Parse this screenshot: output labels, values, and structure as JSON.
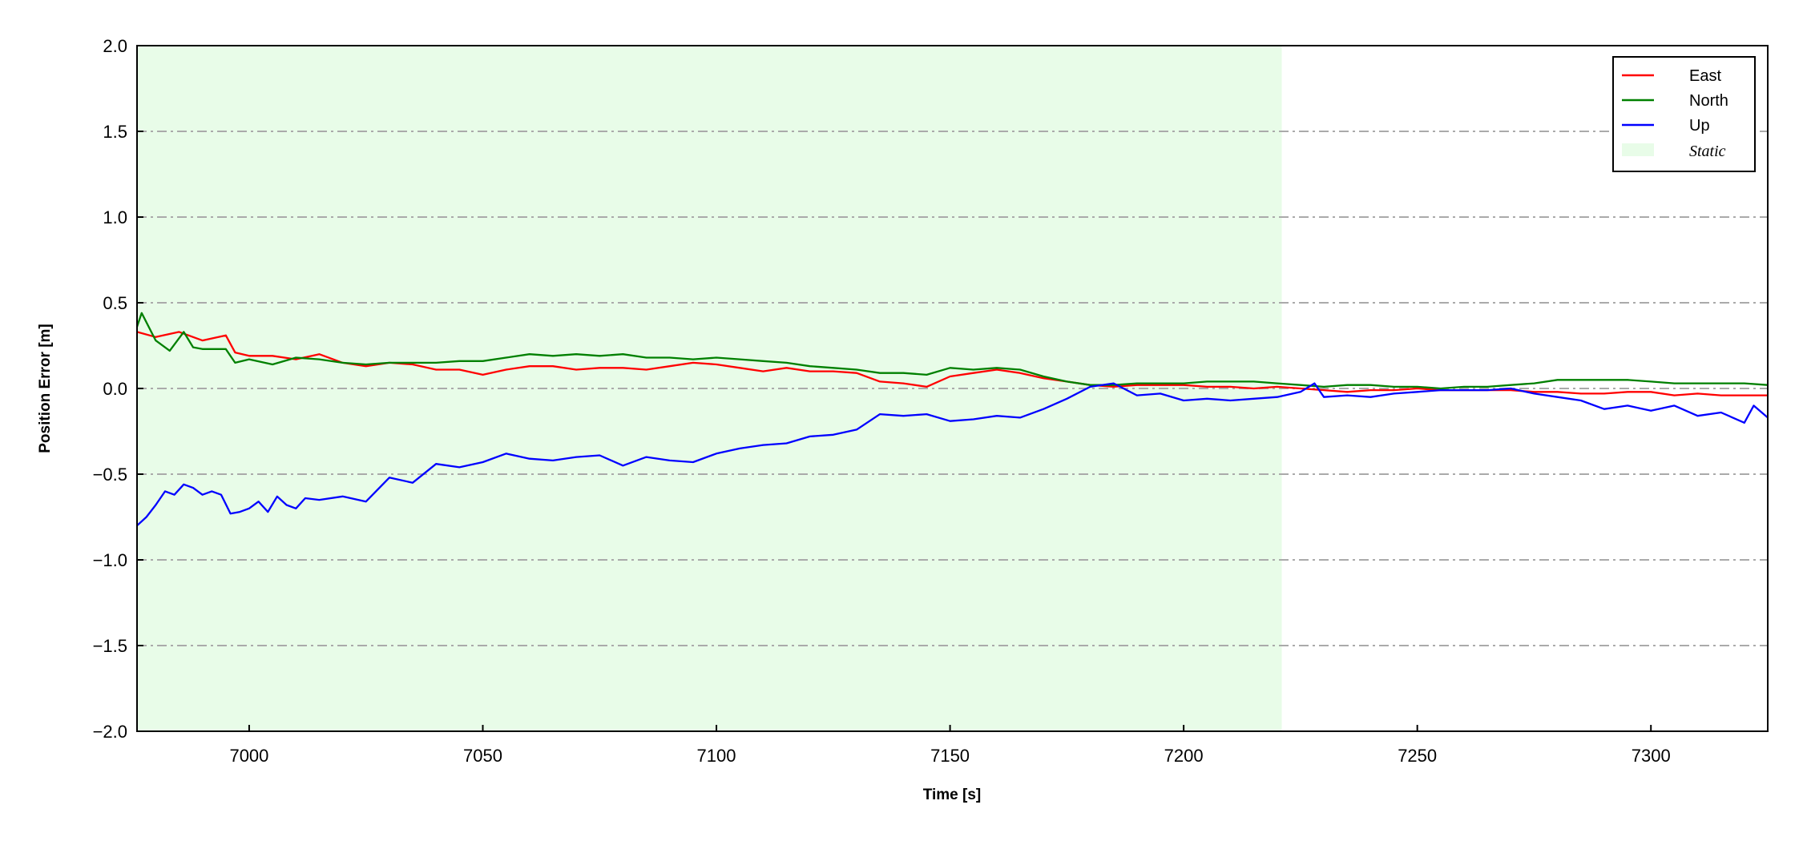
{
  "chart_data": {
    "type": "line",
    "xlabel": "Time [s]",
    "ylabel": "Position Error [m]",
    "xlim": [
      6976,
      7325
    ],
    "ylim": [
      -2.0,
      2.0
    ],
    "xticks": [
      7000,
      7050,
      7100,
      7150,
      7200,
      7250,
      7300
    ],
    "yticks": [
      -2.0,
      -1.5,
      -1.0,
      -0.5,
      0.0,
      0.5,
      1.0,
      1.5,
      2.0
    ],
    "ytick_labels": [
      "−2.0",
      "−1.5",
      "−1.0",
      "−0.5",
      "0.0",
      "0.5",
      "1.0",
      "1.5",
      "2.0"
    ],
    "grid": "horizontal dash-dot",
    "grid_color": "#aaaaaa",
    "legend_placement": "top-right",
    "static_region": {
      "label": "Static",
      "x_start": 6976,
      "x_end": 7221,
      "color": "#e8fce8"
    },
    "series": [
      {
        "name": "East",
        "color": "#ff0000",
        "x": [
          6976,
          6980,
          6985,
          6990,
          6995,
          6997,
          7000,
          7005,
          7010,
          7015,
          7020,
          7025,
          7030,
          7035,
          7040,
          7045,
          7050,
          7055,
          7060,
          7065,
          7070,
          7075,
          7080,
          7085,
          7090,
          7095,
          7100,
          7105,
          7110,
          7115,
          7120,
          7125,
          7130,
          7135,
          7140,
          7145,
          7150,
          7155,
          7160,
          7165,
          7170,
          7175,
          7180,
          7185,
          7190,
          7195,
          7200,
          7205,
          7210,
          7215,
          7220,
          7225,
          7230,
          7235,
          7240,
          7245,
          7250,
          7255,
          7260,
          7265,
          7270,
          7275,
          7280,
          7285,
          7290,
          7295,
          7300,
          7305,
          7310,
          7315,
          7320,
          7325
        ],
        "y": [
          0.33,
          0.3,
          0.33,
          0.28,
          0.31,
          0.21,
          0.19,
          0.19,
          0.17,
          0.2,
          0.15,
          0.13,
          0.15,
          0.14,
          0.11,
          0.11,
          0.08,
          0.11,
          0.13,
          0.13,
          0.11,
          0.12,
          0.12,
          0.11,
          0.13,
          0.15,
          0.14,
          0.12,
          0.1,
          0.12,
          0.1,
          0.1,
          0.09,
          0.04,
          0.03,
          0.01,
          0.07,
          0.09,
          0.11,
          0.09,
          0.06,
          0.04,
          0.02,
          0.01,
          0.02,
          0.02,
          0.02,
          0.01,
          0.01,
          0.0,
          0.01,
          0.0,
          -0.01,
          -0.02,
          -0.01,
          -0.01,
          0.0,
          -0.01,
          -0.01,
          -0.01,
          -0.01,
          -0.02,
          -0.02,
          -0.03,
          -0.03,
          -0.02,
          -0.02,
          -0.04,
          -0.03,
          -0.04,
          -0.04,
          -0.04
        ]
      },
      {
        "name": "North",
        "color": "#008000",
        "x": [
          6976,
          6977,
          6980,
          6983,
          6986,
          6988,
          6990,
          6995,
          6997,
          7000,
          7005,
          7010,
          7015,
          7020,
          7025,
          7030,
          7035,
          7040,
          7045,
          7050,
          7055,
          7060,
          7065,
          7070,
          7075,
          7080,
          7085,
          7090,
          7095,
          7100,
          7105,
          7110,
          7115,
          7120,
          7125,
          7130,
          7135,
          7140,
          7145,
          7150,
          7155,
          7160,
          7165,
          7170,
          7175,
          7180,
          7185,
          7190,
          7195,
          7200,
          7205,
          7210,
          7215,
          7220,
          7225,
          7230,
          7235,
          7240,
          7245,
          7250,
          7255,
          7260,
          7265,
          7270,
          7275,
          7280,
          7285,
          7290,
          7295,
          7300,
          7305,
          7310,
          7315,
          7320,
          7325
        ],
        "y": [
          0.36,
          0.44,
          0.28,
          0.22,
          0.33,
          0.24,
          0.23,
          0.23,
          0.15,
          0.17,
          0.14,
          0.18,
          0.17,
          0.15,
          0.14,
          0.15,
          0.15,
          0.15,
          0.16,
          0.16,
          0.18,
          0.2,
          0.19,
          0.2,
          0.19,
          0.2,
          0.18,
          0.18,
          0.17,
          0.18,
          0.17,
          0.16,
          0.15,
          0.13,
          0.12,
          0.11,
          0.09,
          0.09,
          0.08,
          0.12,
          0.11,
          0.12,
          0.11,
          0.07,
          0.04,
          0.02,
          0.02,
          0.03,
          0.03,
          0.03,
          0.04,
          0.04,
          0.04,
          0.03,
          0.02,
          0.01,
          0.02,
          0.02,
          0.01,
          0.01,
          0.0,
          0.01,
          0.01,
          0.02,
          0.03,
          0.05,
          0.05,
          0.05,
          0.05,
          0.04,
          0.03,
          0.03,
          0.03,
          0.03,
          0.02
        ]
      },
      {
        "name": "Up",
        "color": "#0000ff",
        "x": [
          6976,
          6978,
          6980,
          6982,
          6984,
          6986,
          6988,
          6990,
          6992,
          6994,
          6996,
          6998,
          7000,
          7002,
          7004,
          7006,
          7008,
          7010,
          7012,
          7015,
          7020,
          7025,
          7030,
          7035,
          7040,
          7045,
          7050,
          7055,
          7060,
          7065,
          7070,
          7075,
          7080,
          7085,
          7090,
          7095,
          7100,
          7105,
          7110,
          7115,
          7120,
          7125,
          7130,
          7135,
          7140,
          7145,
          7150,
          7155,
          7160,
          7165,
          7170,
          7175,
          7180,
          7185,
          7190,
          7195,
          7200,
          7205,
          7210,
          7215,
          7220,
          7225,
          7228,
          7230,
          7235,
          7240,
          7245,
          7250,
          7255,
          7260,
          7265,
          7270,
          7275,
          7280,
          7285,
          7290,
          7295,
          7300,
          7305,
          7310,
          7315,
          7320,
          7322,
          7325
        ],
        "y": [
          -0.8,
          -0.75,
          -0.68,
          -0.6,
          -0.62,
          -0.56,
          -0.58,
          -0.62,
          -0.6,
          -0.62,
          -0.73,
          -0.72,
          -0.7,
          -0.66,
          -0.72,
          -0.63,
          -0.68,
          -0.7,
          -0.64,
          -0.65,
          -0.63,
          -0.66,
          -0.52,
          -0.55,
          -0.44,
          -0.46,
          -0.43,
          -0.38,
          -0.41,
          -0.42,
          -0.4,
          -0.39,
          -0.45,
          -0.4,
          -0.42,
          -0.43,
          -0.38,
          -0.35,
          -0.33,
          -0.32,
          -0.28,
          -0.27,
          -0.24,
          -0.15,
          -0.16,
          -0.15,
          -0.19,
          -0.18,
          -0.16,
          -0.17,
          -0.12,
          -0.06,
          0.01,
          0.03,
          -0.04,
          -0.03,
          -0.07,
          -0.06,
          -0.07,
          -0.06,
          -0.05,
          -0.02,
          0.03,
          -0.05,
          -0.04,
          -0.05,
          -0.03,
          -0.02,
          -0.01,
          -0.01,
          -0.01,
          0.0,
          -0.03,
          -0.05,
          -0.07,
          -0.12,
          -0.1,
          -0.13,
          -0.1,
          -0.16,
          -0.14,
          -0.2,
          -0.1,
          -0.17
        ]
      }
    ]
  }
}
